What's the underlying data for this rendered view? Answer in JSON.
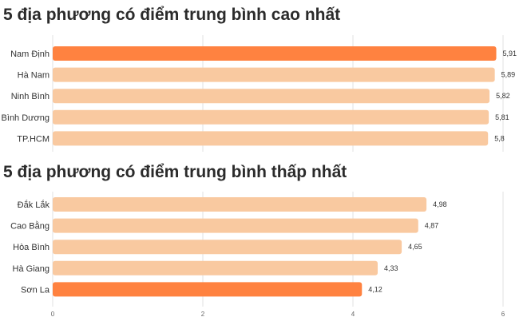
{
  "chart_data": [
    {
      "type": "bar",
      "orientation": "horizontal",
      "title": "5 địa phương có điểm trung bình cao nhất",
      "categories": [
        "Nam Định",
        "Hà Nam",
        "Ninh Bình",
        "Bình Dương",
        "TP.HCM"
      ],
      "values": [
        5.91,
        5.89,
        5.82,
        5.81,
        5.8
      ],
      "value_labels": [
        "5,91",
        "5,89",
        "5,82",
        "5,81",
        "5,8"
      ],
      "highlighted": [
        true,
        false,
        false,
        false,
        false
      ],
      "xlim": [
        0,
        6
      ],
      "grid": true
    },
    {
      "type": "bar",
      "orientation": "horizontal",
      "title": "5 địa phương có điểm trung bình thấp nhất",
      "categories": [
        "Đắk Lắk",
        "Cao Bằng",
        "Hòa Bình",
        "Hà Giang",
        "Sơn La"
      ],
      "values": [
        4.98,
        4.87,
        4.65,
        4.33,
        4.12
      ],
      "value_labels": [
        "4,98",
        "4,87",
        "4,65",
        "4,33",
        "4,12"
      ],
      "highlighted": [
        false,
        false,
        false,
        false,
        true
      ],
      "xlim": [
        0,
        6
      ],
      "xticks": [
        "0",
        "2",
        "4",
        "6"
      ],
      "grid": true
    }
  ],
  "colors": {
    "highlight": "#ff8240",
    "bar": "#f9c9a0",
    "gridline": "#e2e2e2",
    "title": "#2b2b2b"
  }
}
